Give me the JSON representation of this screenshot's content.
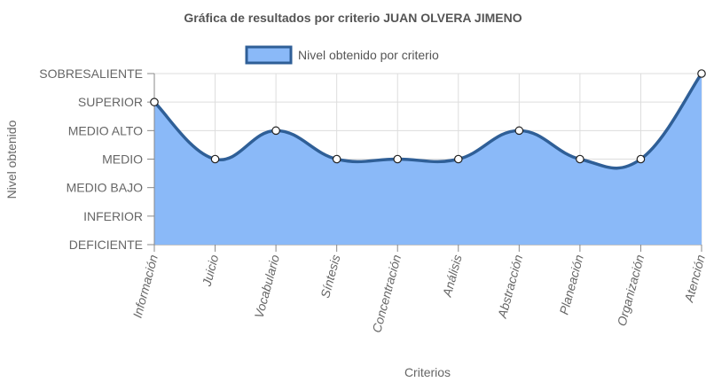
{
  "chart_data": {
    "type": "area",
    "title": "Gráfica de resultados por criterio JUAN OLVERA JIMENO",
    "xlabel": "Criterios",
    "ylabel": "Nivel obtenido",
    "categories": [
      "Información",
      "Juicio",
      "Vocabulario",
      "Síntesis",
      "Concentración",
      "Análisis",
      "Abstracción",
      "Planeación",
      "Organización",
      "Atención"
    ],
    "y_levels": [
      "DEFICIENTE",
      "INFERIOR",
      "MEDIO BAJO",
      "MEDIO",
      "MEDIO ALTO",
      "SUPERIOR",
      "SOBRESALIENTE"
    ],
    "ylim": [
      0,
      6
    ],
    "series": [
      {
        "name": "Nivel obtenido por criterio",
        "values": [
          "SUPERIOR",
          "MEDIO",
          "MEDIO ALTO",
          "MEDIO",
          "MEDIO",
          "MEDIO",
          "MEDIO ALTO",
          "MEDIO",
          "MEDIO",
          "SOBRESALIENTE"
        ],
        "fill_color": "#8ab9f8",
        "line_color": "#2f5f97"
      }
    ],
    "grid": true,
    "legend_position": "top"
  }
}
